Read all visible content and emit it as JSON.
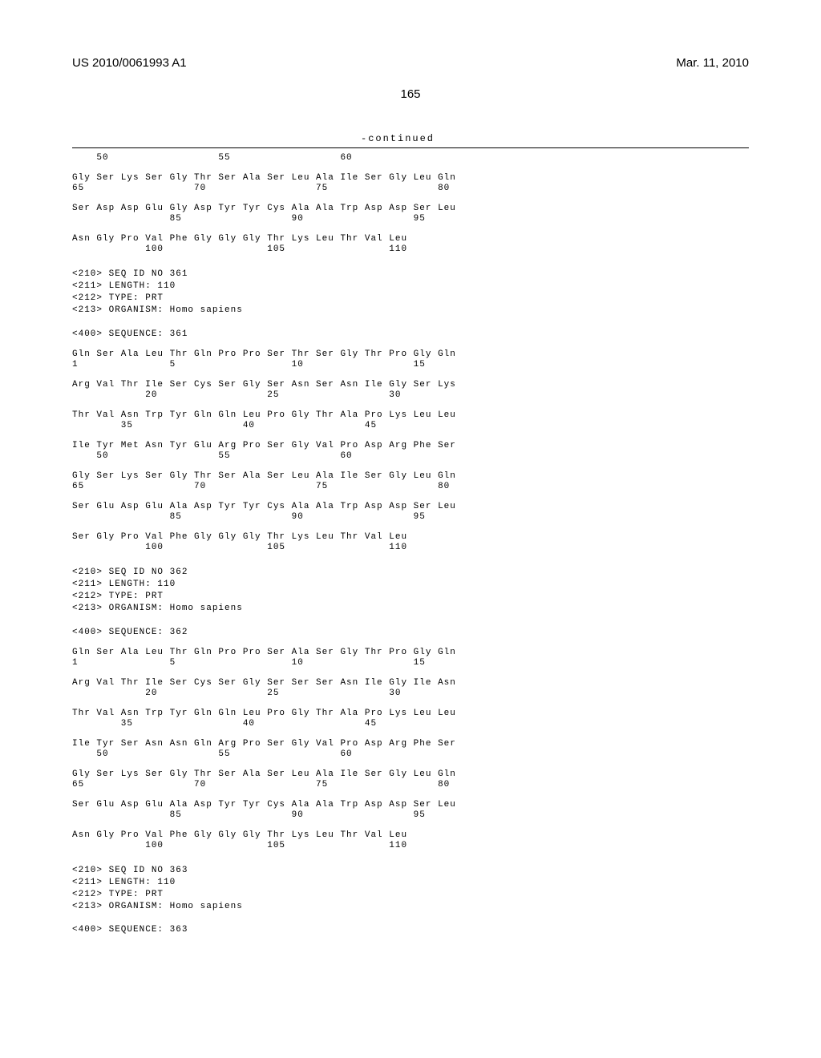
{
  "header": {
    "pub_number": "US 2010/0061993 A1",
    "pub_date": "Mar. 11, 2010"
  },
  "page_number": "165",
  "continued_label": "-continued",
  "blocks": [
    {
      "type": "seq",
      "text": "    50                  55                  60\n\nGly Ser Lys Ser Gly Thr Ser Ala Ser Leu Ala Ile Ser Gly Leu Gln\n65                  70                  75                  80\n\nSer Asp Asp Glu Gly Asp Tyr Tyr Cys Ala Ala Trp Asp Asp Ser Leu\n                85                  90                  95\n\nAsn Gly Pro Val Phe Gly Gly Gly Thr Lys Leu Thr Val Leu\n            100                 105                 110"
    },
    {
      "type": "meta",
      "text": "<210> SEQ ID NO 361\n<211> LENGTH: 110\n<212> TYPE: PRT\n<213> ORGANISM: Homo sapiens\n\n<400> SEQUENCE: 361"
    },
    {
      "type": "seq",
      "text": "Gln Ser Ala Leu Thr Gln Pro Pro Ser Thr Ser Gly Thr Pro Gly Gln\n1               5                   10                  15\n\nArg Val Thr Ile Ser Cys Ser Gly Ser Asn Ser Asn Ile Gly Ser Lys\n            20                  25                  30\n\nThr Val Asn Trp Tyr Gln Gln Leu Pro Gly Thr Ala Pro Lys Leu Leu\n        35                  40                  45\n\nIle Tyr Met Asn Tyr Glu Arg Pro Ser Gly Val Pro Asp Arg Phe Ser\n    50                  55                  60\n\nGly Ser Lys Ser Gly Thr Ser Ala Ser Leu Ala Ile Ser Gly Leu Gln\n65                  70                  75                  80\n\nSer Glu Asp Glu Ala Asp Tyr Tyr Cys Ala Ala Trp Asp Asp Ser Leu\n                85                  90                  95\n\nSer Gly Pro Val Phe Gly Gly Gly Thr Lys Leu Thr Val Leu\n            100                 105                 110"
    },
    {
      "type": "meta",
      "text": "<210> SEQ ID NO 362\n<211> LENGTH: 110\n<212> TYPE: PRT\n<213> ORGANISM: Homo sapiens\n\n<400> SEQUENCE: 362"
    },
    {
      "type": "seq",
      "text": "Gln Ser Ala Leu Thr Gln Pro Pro Ser Ala Ser Gly Thr Pro Gly Gln\n1               5                   10                  15\n\nArg Val Thr Ile Ser Cys Ser Gly Ser Ser Ser Asn Ile Gly Ile Asn\n            20                  25                  30\n\nThr Val Asn Trp Tyr Gln Gln Leu Pro Gly Thr Ala Pro Lys Leu Leu\n        35                  40                  45\n\nIle Tyr Ser Asn Asn Gln Arg Pro Ser Gly Val Pro Asp Arg Phe Ser\n    50                  55                  60\n\nGly Ser Lys Ser Gly Thr Ser Ala Ser Leu Ala Ile Ser Gly Leu Gln\n65                  70                  75                  80\n\nSer Glu Asp Glu Ala Asp Tyr Tyr Cys Ala Ala Trp Asp Asp Ser Leu\n                85                  90                  95\n\nAsn Gly Pro Val Phe Gly Gly Gly Thr Lys Leu Thr Val Leu\n            100                 105                 110"
    },
    {
      "type": "meta",
      "text": "<210> SEQ ID NO 363\n<211> LENGTH: 110\n<212> TYPE: PRT\n<213> ORGANISM: Homo sapiens\n\n<400> SEQUENCE: 363"
    }
  ]
}
